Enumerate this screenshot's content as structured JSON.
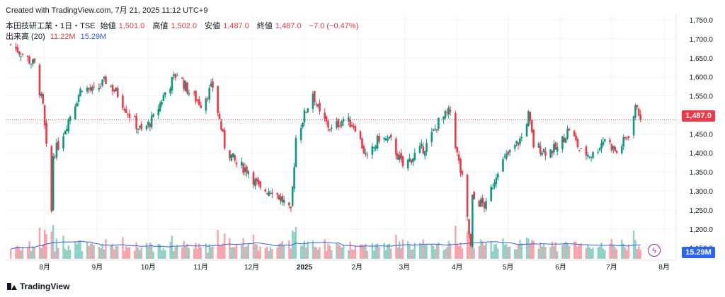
{
  "header": {
    "created": "Created with TradingView.com, 7月 21, 2025 11:12 UTC+9"
  },
  "legend": {
    "symbol": "本田技研工業・1日・TSE",
    "open_label": "始値",
    "open": "1,501.0",
    "high_label": "高値",
    "high": "1,502.0",
    "low_label": "安値",
    "low": "1,487.0",
    "close_label": "終値",
    "close": "1,487.0",
    "change": "−7.0 (−0.47%)",
    "volume_label": "出来高 (20)",
    "volume": "11.22M",
    "volume_ma": "15.29M"
  },
  "price_tag": "1,487.0",
  "volume_tag": "15.29M",
  "footer": {
    "brand": "TradingView"
  },
  "colors": {
    "up": "#089981",
    "down": "#f23645",
    "ma": "#2962ff",
    "grid": "#f0f3fa"
  },
  "chart_data": {
    "type": "candlestick",
    "y_ticks": [
      "1,750.0",
      "1,700.0",
      "1,650.0",
      "1,600.0",
      "1,550.0",
      "1,500.0",
      "1,450.0",
      "1,400.0",
      "1,350.0",
      "1,300.0",
      "1,250.0",
      "1,200.0",
      "1,150.0"
    ],
    "y_tick_values": [
      1750,
      1700,
      1650,
      1600,
      1550,
      1500,
      1450,
      1400,
      1350,
      1300,
      1250,
      1200,
      1150
    ],
    "ylim": [
      1127,
      1765
    ],
    "x_ticks": [
      {
        "label": "8月",
        "date": "2024-08-01"
      },
      {
        "label": "9月",
        "date": "2024-09-01"
      },
      {
        "label": "10月",
        "date": "2024-10-01"
      },
      {
        "label": "11月",
        "date": "2024-11-01"
      },
      {
        "label": "12月",
        "date": "2024-12-01"
      },
      {
        "label": "2025",
        "date": "2025-01-01"
      },
      {
        "label": "2月",
        "date": "2025-02-01"
      },
      {
        "label": "3月",
        "date": "2025-03-01"
      },
      {
        "label": "4月",
        "date": "2025-04-01"
      },
      {
        "label": "5月",
        "date": "2025-05-01"
      },
      {
        "label": "6月",
        "date": "2025-06-01"
      },
      {
        "label": "7月",
        "date": "2025-07-01"
      },
      {
        "label": "8月",
        "date": "2025-08-01"
      }
    ],
    "close_anchors": [
      {
        "date": "2024-07-12",
        "close": 1685
      },
      {
        "date": "2024-07-19",
        "close": 1660
      },
      {
        "date": "2024-07-26",
        "close": 1630
      },
      {
        "date": "2024-07-31",
        "close": 1520
      },
      {
        "date": "2024-08-05",
        "close": 1245
      },
      {
        "date": "2024-08-06",
        "close": 1395
      },
      {
        "date": "2024-08-09",
        "close": 1420
      },
      {
        "date": "2024-08-16",
        "close": 1500
      },
      {
        "date": "2024-08-23",
        "close": 1575
      },
      {
        "date": "2024-08-30",
        "close": 1560
      },
      {
        "date": "2024-09-06",
        "close": 1590
      },
      {
        "date": "2024-09-13",
        "close": 1555
      },
      {
        "date": "2024-09-20",
        "close": 1500
      },
      {
        "date": "2024-09-27",
        "close": 1455
      },
      {
        "date": "2024-10-04",
        "close": 1490
      },
      {
        "date": "2024-10-11",
        "close": 1560
      },
      {
        "date": "2024-10-18",
        "close": 1610
      },
      {
        "date": "2024-10-25",
        "close": 1560
      },
      {
        "date": "2024-11-01",
        "close": 1530
      },
      {
        "date": "2024-11-08",
        "close": 1575
      },
      {
        "date": "2024-11-15",
        "close": 1420
      },
      {
        "date": "2024-11-22",
        "close": 1370
      },
      {
        "date": "2024-11-29",
        "close": 1355
      },
      {
        "date": "2024-12-06",
        "close": 1300
      },
      {
        "date": "2024-12-13",
        "close": 1305
      },
      {
        "date": "2024-12-20",
        "close": 1270
      },
      {
        "date": "2024-12-24",
        "close": 1240
      },
      {
        "date": "2024-12-27",
        "close": 1440
      },
      {
        "date": "2025-01-06",
        "close": 1560
      },
      {
        "date": "2025-01-10",
        "close": 1500
      },
      {
        "date": "2025-01-17",
        "close": 1460
      },
      {
        "date": "2025-01-24",
        "close": 1490
      },
      {
        "date": "2025-01-31",
        "close": 1470
      },
      {
        "date": "2025-02-07",
        "close": 1380
      },
      {
        "date": "2025-02-14",
        "close": 1440
      },
      {
        "date": "2025-02-21",
        "close": 1430
      },
      {
        "date": "2025-02-28",
        "close": 1365
      },
      {
        "date": "2025-03-07",
        "close": 1395
      },
      {
        "date": "2025-03-14",
        "close": 1420
      },
      {
        "date": "2025-03-21",
        "close": 1480
      },
      {
        "date": "2025-03-28",
        "close": 1510
      },
      {
        "date": "2025-04-01",
        "close": 1395
      },
      {
        "date": "2025-04-04",
        "close": 1330
      },
      {
        "date": "2025-04-09",
        "close": 1150
      },
      {
        "date": "2025-04-10",
        "close": 1280
      },
      {
        "date": "2025-04-18",
        "close": 1260
      },
      {
        "date": "2025-04-25",
        "close": 1360
      },
      {
        "date": "2025-05-02",
        "close": 1400
      },
      {
        "date": "2025-05-09",
        "close": 1440
      },
      {
        "date": "2025-05-13",
        "close": 1500
      },
      {
        "date": "2025-05-16",
        "close": 1420
      },
      {
        "date": "2025-05-23",
        "close": 1405
      },
      {
        "date": "2025-05-30",
        "close": 1410
      },
      {
        "date": "2025-06-06",
        "close": 1465
      },
      {
        "date": "2025-06-13",
        "close": 1400
      },
      {
        "date": "2025-06-20",
        "close": 1395
      },
      {
        "date": "2025-06-27",
        "close": 1440
      },
      {
        "date": "2025-07-04",
        "close": 1400
      },
      {
        "date": "2025-07-11",
        "close": 1450
      },
      {
        "date": "2025-07-16",
        "close": 1530
      },
      {
        "date": "2025-07-18",
        "close": 1487
      }
    ],
    "volume_avg_M": 15.29,
    "volume_last_M": 11.22
  }
}
